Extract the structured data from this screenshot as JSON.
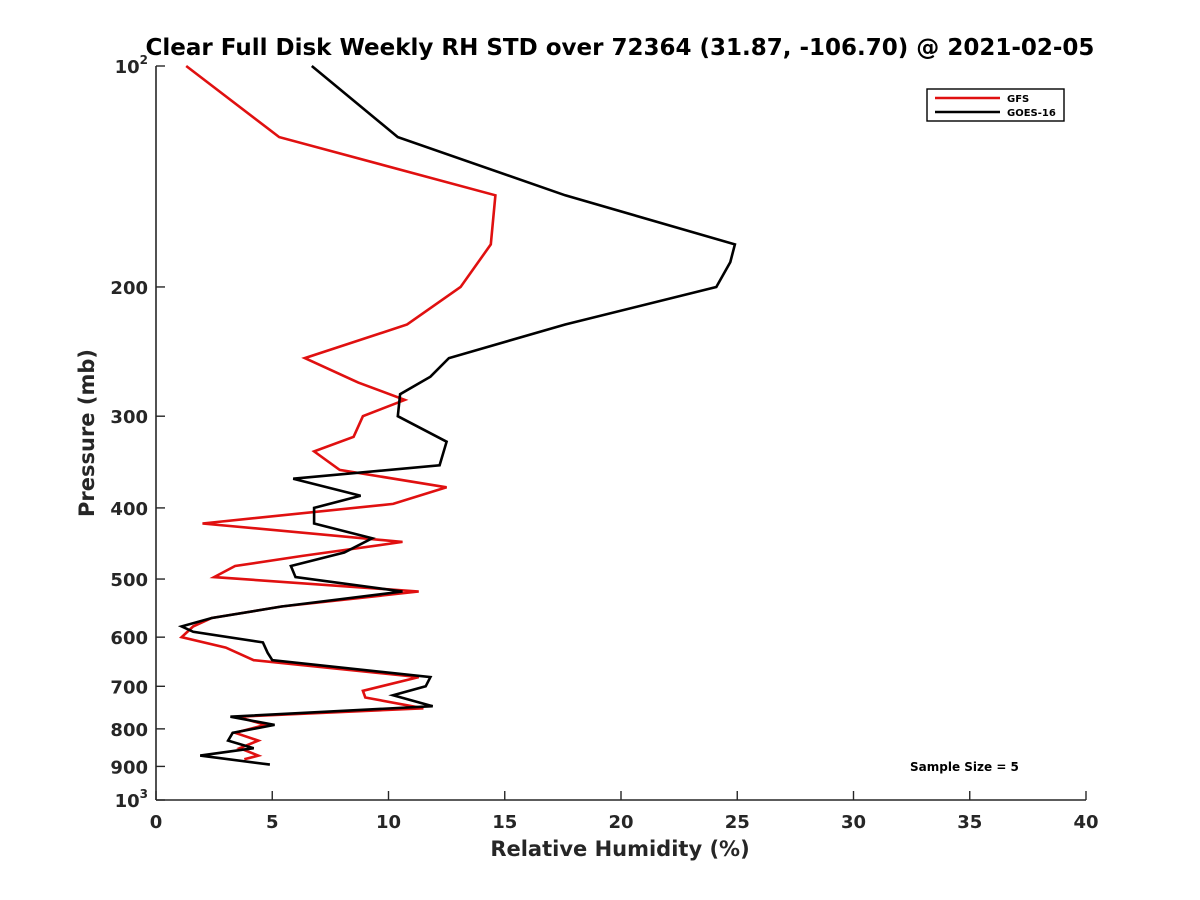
{
  "chart_data": {
    "type": "line",
    "title": "Clear Full Disk Weekly RH STD over 72364 (31.87, -106.70) @ 2021-02-05",
    "xlabel": "Relative Humidity (%)",
    "ylabel": "Pressure (mb)",
    "xlim": [
      0,
      40
    ],
    "ylim": [
      100,
      1000
    ],
    "yscale": "log",
    "y_reversed": true,
    "grid": false,
    "legend_position": "top-right",
    "x_ticks": [
      0,
      5,
      10,
      15,
      20,
      25,
      30,
      35,
      40
    ],
    "y_ticks": [
      {
        "value": 100,
        "label": "10",
        "sup": "2"
      },
      {
        "value": 200,
        "label": "200",
        "sup": ""
      },
      {
        "value": 300,
        "label": "300",
        "sup": ""
      },
      {
        "value": 400,
        "label": "400",
        "sup": ""
      },
      {
        "value": 500,
        "label": "500",
        "sup": ""
      },
      {
        "value": 600,
        "label": "600",
        "sup": ""
      },
      {
        "value": 700,
        "label": "700",
        "sup": ""
      },
      {
        "value": 800,
        "label": "800",
        "sup": ""
      },
      {
        "value": 900,
        "label": "900",
        "sup": ""
      },
      {
        "value": 1000,
        "label": "10",
        "sup": "3"
      }
    ],
    "series": [
      {
        "name": "GFS",
        "color": "#e01010",
        "points": [
          [
            1.3,
            100
          ],
          [
            5.3,
            125
          ],
          [
            14.6,
            150
          ],
          [
            14.4,
            175
          ],
          [
            13.1,
            200
          ],
          [
            10.8,
            225
          ],
          [
            6.4,
            250
          ],
          [
            8.7,
            270
          ],
          [
            10.7,
            285
          ],
          [
            8.9,
            300
          ],
          [
            8.5,
            320
          ],
          [
            6.8,
            335
          ],
          [
            7.9,
            355
          ],
          [
            12.5,
            375
          ],
          [
            10.2,
            395
          ],
          [
            2.0,
            420
          ],
          [
            10.6,
            445
          ],
          [
            6.3,
            465
          ],
          [
            3.4,
            480
          ],
          [
            2.5,
            497
          ],
          [
            11.3,
            520
          ],
          [
            5.4,
            545
          ],
          [
            2.4,
            565
          ],
          [
            1.6,
            580
          ],
          [
            1.1,
            600
          ],
          [
            3.0,
            620
          ],
          [
            4.2,
            645
          ],
          [
            11.3,
            680
          ],
          [
            8.9,
            710
          ],
          [
            9.0,
            725
          ],
          [
            11.5,
            750
          ],
          [
            3.5,
            770
          ],
          [
            4.7,
            790
          ],
          [
            3.4,
            810
          ],
          [
            4.4,
            830
          ],
          [
            3.6,
            850
          ],
          [
            4.4,
            870
          ],
          [
            3.8,
            880
          ]
        ]
      },
      {
        "name": "GOES-16",
        "color": "#000000",
        "points": [
          [
            6.7,
            100
          ],
          [
            10.4,
            125
          ],
          [
            17.6,
            150
          ],
          [
            24.9,
            175
          ],
          [
            24.7,
            185
          ],
          [
            24.1,
            200
          ],
          [
            17.6,
            225
          ],
          [
            12.6,
            250
          ],
          [
            11.8,
            265
          ],
          [
            10.5,
            280
          ],
          [
            10.4,
            300
          ],
          [
            12.5,
            325
          ],
          [
            12.2,
            350
          ],
          [
            5.9,
            365
          ],
          [
            8.8,
            385
          ],
          [
            6.8,
            400
          ],
          [
            6.8,
            420
          ],
          [
            9.3,
            440
          ],
          [
            8.1,
            460
          ],
          [
            5.8,
            480
          ],
          [
            6.0,
            497
          ],
          [
            10.6,
            520
          ],
          [
            5.4,
            545
          ],
          [
            2.4,
            565
          ],
          [
            1.1,
            580
          ],
          [
            1.6,
            590
          ],
          [
            4.6,
            610
          ],
          [
            4.8,
            630
          ],
          [
            5.0,
            645
          ],
          [
            11.8,
            680
          ],
          [
            11.6,
            700
          ],
          [
            10.2,
            720
          ],
          [
            11.9,
            745
          ],
          [
            3.2,
            770
          ],
          [
            5.1,
            790
          ],
          [
            3.3,
            810
          ],
          [
            3.1,
            830
          ],
          [
            4.2,
            850
          ],
          [
            1.9,
            870
          ],
          [
            4.9,
            895
          ]
        ]
      }
    ],
    "legend": [
      "GFS",
      "GOES-16"
    ],
    "annotation": "Sample Size = 5"
  }
}
